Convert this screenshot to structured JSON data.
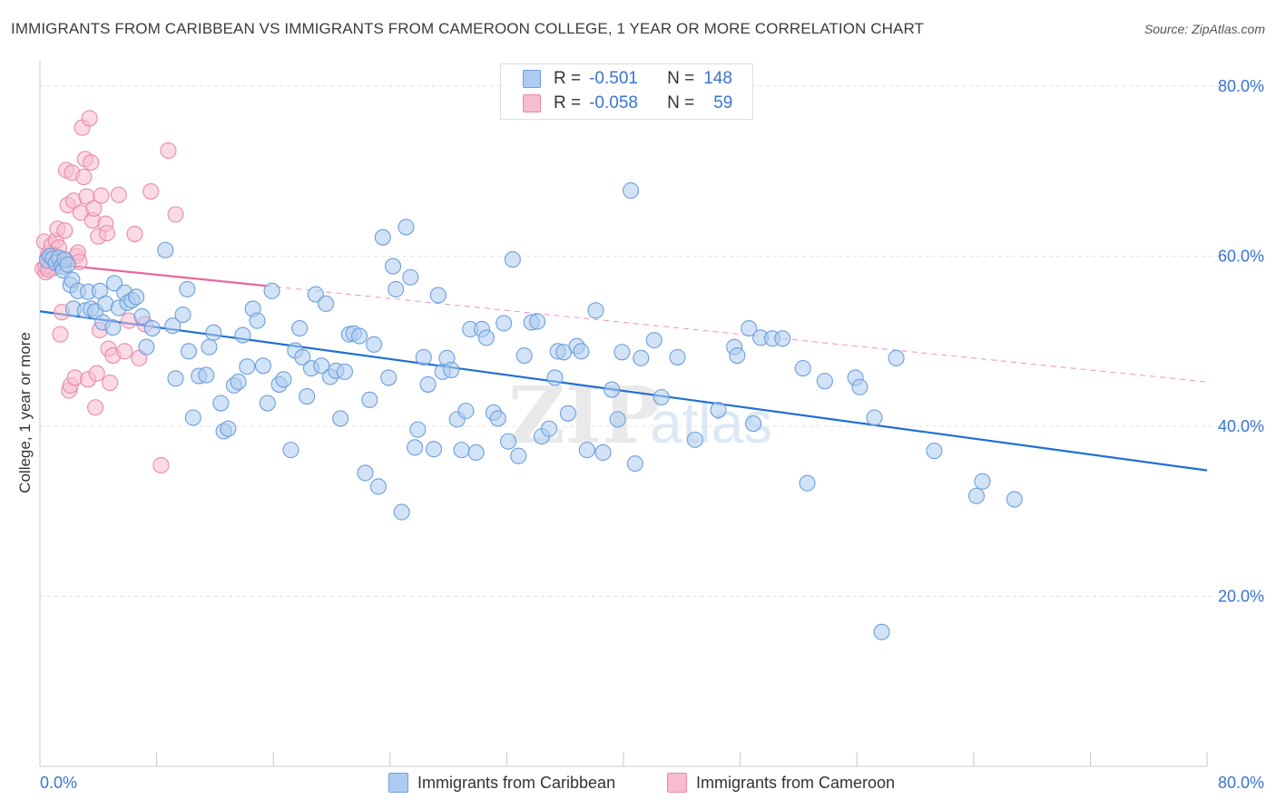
{
  "title": "IMMIGRANTS FROM CARIBBEAN VS IMMIGRANTS FROM CAMEROON COLLEGE, 1 YEAR OR MORE CORRELATION CHART",
  "source": "Source: ZipAtlas.com",
  "legend": {
    "rows": [
      {
        "r_label": "R =",
        "r_value": "-0.501",
        "n_label": "N =",
        "n_value": "148"
      },
      {
        "r_label": "R =",
        "r_value": "-0.058",
        "n_label": "N =",
        "n_value": "59"
      }
    ]
  },
  "bottom_legend": {
    "caribbean": "Immigrants from Caribbean",
    "cameroon": "Immigrants from Cameroon"
  },
  "watermark": {
    "zip": "ZIP",
    "atlas": "atlas"
  },
  "colors": {
    "caribbean_fill": "#aeccf1",
    "caribbean_stroke": "#6c9fdc",
    "caribbean_line": "#1f6fd1",
    "cameroon_fill": "#f7bcd0",
    "cameroon_stroke": "#ea8aaa",
    "cameroon_line": "#e8679a",
    "axis_text": "#3a74d0",
    "grid": "#e3e3e3"
  },
  "chart_data": {
    "type": "scatter",
    "title": "IMMIGRANTS FROM CARIBBEAN VS IMMIGRANTS FROM CAMEROON COLLEGE, 1 YEAR OR MORE CORRELATION CHART",
    "xlabel": "",
    "ylabel": "College, 1 year or more",
    "xlim": [
      0,
      80
    ],
    "ylim": [
      0,
      82
    ],
    "x_tick_labels": [
      "0.0%",
      "80.0%"
    ],
    "y_ticks": [
      20,
      40,
      60,
      80
    ],
    "y_tick_labels": [
      "20.0%",
      "40.0%",
      "60.0%",
      "80.0%"
    ],
    "series": [
      {
        "name": "Immigrants from Caribbean",
        "R": -0.501,
        "N": 148,
        "trend": {
          "x0": 0,
          "y0": 53.5,
          "x1": 80,
          "y1": 34.8
        },
        "points": [
          [
            0.5,
            59.5
          ],
          [
            0.7,
            60.0
          ],
          [
            0.9,
            59.7
          ],
          [
            1.1,
            59.2
          ],
          [
            1.3,
            59.8
          ],
          [
            1.5,
            58.8
          ],
          [
            1.6,
            58.3
          ],
          [
            1.7,
            59.6
          ],
          [
            1.9,
            59.0
          ],
          [
            2.1,
            56.6
          ],
          [
            2.2,
            57.2
          ],
          [
            2.3,
            53.8
          ],
          [
            2.6,
            55.9
          ],
          [
            3.1,
            53.6
          ],
          [
            3.3,
            55.8
          ],
          [
            3.5,
            53.8
          ],
          [
            3.8,
            53.5
          ],
          [
            4.1,
            55.9
          ],
          [
            4.3,
            52.2
          ],
          [
            4.5,
            54.4
          ],
          [
            5.0,
            51.6
          ],
          [
            5.1,
            56.8
          ],
          [
            5.4,
            53.9
          ],
          [
            5.8,
            55.7
          ],
          [
            6.0,
            54.5
          ],
          [
            6.3,
            54.8
          ],
          [
            6.6,
            55.2
          ],
          [
            7.0,
            52.9
          ],
          [
            7.3,
            49.3
          ],
          [
            7.7,
            51.5
          ],
          [
            8.6,
            60.7
          ],
          [
            9.1,
            51.8
          ],
          [
            9.3,
            45.6
          ],
          [
            9.8,
            53.1
          ],
          [
            10.1,
            56.1
          ],
          [
            10.2,
            48.8
          ],
          [
            10.5,
            41.0
          ],
          [
            10.9,
            45.9
          ],
          [
            11.4,
            46.0
          ],
          [
            11.6,
            49.3
          ],
          [
            11.9,
            51.0
          ],
          [
            12.4,
            42.7
          ],
          [
            12.6,
            39.4
          ],
          [
            12.9,
            39.7
          ],
          [
            13.3,
            44.8
          ],
          [
            13.6,
            45.2
          ],
          [
            13.9,
            50.7
          ],
          [
            14.2,
            47.0
          ],
          [
            14.6,
            53.8
          ],
          [
            14.9,
            52.4
          ],
          [
            15.3,
            47.1
          ],
          [
            15.6,
            42.7
          ],
          [
            15.9,
            55.9
          ],
          [
            16.4,
            44.9
          ],
          [
            16.7,
            45.5
          ],
          [
            17.2,
            37.2
          ],
          [
            17.5,
            48.9
          ],
          [
            17.8,
            51.5
          ],
          [
            18.0,
            48.1
          ],
          [
            18.3,
            43.5
          ],
          [
            18.6,
            46.8
          ],
          [
            18.9,
            55.5
          ],
          [
            19.3,
            47.1
          ],
          [
            19.6,
            54.4
          ],
          [
            19.9,
            45.8
          ],
          [
            20.3,
            46.5
          ],
          [
            20.6,
            40.9
          ],
          [
            20.9,
            46.4
          ],
          [
            21.2,
            50.8
          ],
          [
            21.5,
            50.9
          ],
          [
            21.9,
            50.6
          ],
          [
            22.3,
            34.5
          ],
          [
            22.6,
            43.1
          ],
          [
            22.9,
            49.6
          ],
          [
            23.2,
            32.9
          ],
          [
            23.5,
            62.2
          ],
          [
            23.9,
            45.7
          ],
          [
            24.2,
            58.8
          ],
          [
            24.4,
            56.1
          ],
          [
            24.8,
            29.9
          ],
          [
            25.1,
            63.4
          ],
          [
            25.4,
            57.5
          ],
          [
            25.7,
            37.5
          ],
          [
            25.9,
            39.6
          ],
          [
            26.3,
            48.1
          ],
          [
            26.6,
            44.9
          ],
          [
            27.0,
            37.3
          ],
          [
            27.3,
            55.4
          ],
          [
            27.6,
            46.4
          ],
          [
            27.9,
            48.0
          ],
          [
            28.2,
            46.6
          ],
          [
            28.6,
            40.8
          ],
          [
            28.9,
            37.2
          ],
          [
            29.2,
            41.8
          ],
          [
            29.5,
            51.4
          ],
          [
            29.9,
            36.9
          ],
          [
            30.3,
            51.4
          ],
          [
            30.6,
            50.4
          ],
          [
            31.1,
            41.6
          ],
          [
            31.4,
            40.9
          ],
          [
            31.8,
            52.1
          ],
          [
            32.1,
            38.2
          ],
          [
            32.4,
            59.6
          ],
          [
            32.8,
            36.5
          ],
          [
            33.2,
            48.3
          ],
          [
            33.7,
            52.2
          ],
          [
            34.1,
            52.3
          ],
          [
            34.4,
            38.8
          ],
          [
            34.9,
            39.7
          ],
          [
            35.3,
            45.7
          ],
          [
            35.5,
            48.8
          ],
          [
            35.9,
            48.7
          ],
          [
            36.2,
            41.5
          ],
          [
            36.8,
            49.4
          ],
          [
            37.1,
            48.8
          ],
          [
            37.5,
            37.2
          ],
          [
            38.1,
            53.6
          ],
          [
            38.6,
            36.9
          ],
          [
            39.2,
            44.3
          ],
          [
            39.6,
            40.8
          ],
          [
            39.9,
            48.7
          ],
          [
            40.5,
            67.7
          ],
          [
            40.8,
            35.6
          ],
          [
            41.2,
            48.0
          ],
          [
            42.1,
            50.1
          ],
          [
            42.6,
            43.4
          ],
          [
            43.7,
            48.1
          ],
          [
            44.9,
            38.4
          ],
          [
            46.5,
            41.9
          ],
          [
            47.6,
            49.3
          ],
          [
            47.8,
            48.3
          ],
          [
            48.6,
            51.5
          ],
          [
            48.9,
            40.3
          ],
          [
            49.4,
            50.4
          ],
          [
            50.2,
            50.3
          ],
          [
            50.9,
            50.3
          ],
          [
            52.3,
            46.8
          ],
          [
            52.6,
            33.3
          ],
          [
            53.8,
            45.3
          ],
          [
            55.9,
            45.7
          ],
          [
            56.2,
            44.6
          ],
          [
            57.2,
            41.0
          ],
          [
            57.7,
            15.8
          ],
          [
            58.7,
            48.0
          ],
          [
            61.3,
            37.1
          ],
          [
            64.2,
            31.8
          ],
          [
            64.6,
            33.5
          ],
          [
            66.8,
            31.4
          ]
        ]
      },
      {
        "name": "Immigrants from Cameroon",
        "R": -0.058,
        "N": 59,
        "trend": {
          "x0": 0,
          "y0": 59.2,
          "x1": 15.5,
          "y1": 56.5
        },
        "trend_dashed": {
          "x0": 15.5,
          "y0": 56.5,
          "x1": 80,
          "y1": 45.2
        },
        "points": [
          [
            0.2,
            58.5
          ],
          [
            0.3,
            61.7
          ],
          [
            0.4,
            58.1
          ],
          [
            0.5,
            59.8
          ],
          [
            0.6,
            60.3
          ],
          [
            0.7,
            58.9
          ],
          [
            0.8,
            61.3
          ],
          [
            0.9,
            58.6
          ],
          [
            1.0,
            59.2
          ],
          [
            1.1,
            61.8
          ],
          [
            1.2,
            63.2
          ],
          [
            1.3,
            61.0
          ],
          [
            1.4,
            50.8
          ],
          [
            1.5,
            53.4
          ],
          [
            1.6,
            59.5
          ],
          [
            1.7,
            63.0
          ],
          [
            1.8,
            70.1
          ],
          [
            1.9,
            66.0
          ],
          [
            2.0,
            44.2
          ],
          [
            2.1,
            44.8
          ],
          [
            2.2,
            69.8
          ],
          [
            2.3,
            66.5
          ],
          [
            2.4,
            45.7
          ],
          [
            2.5,
            60.0
          ],
          [
            2.6,
            60.4
          ],
          [
            2.7,
            59.3
          ],
          [
            2.8,
            65.1
          ],
          [
            2.9,
            75.1
          ],
          [
            3.0,
            69.3
          ],
          [
            3.1,
            71.4
          ],
          [
            3.2,
            67.0
          ],
          [
            3.3,
            45.5
          ],
          [
            3.4,
            76.2
          ],
          [
            3.5,
            71.0
          ],
          [
            3.6,
            64.2
          ],
          [
            3.7,
            65.6
          ],
          [
            3.8,
            42.2
          ],
          [
            3.9,
            46.2
          ],
          [
            4.0,
            62.3
          ],
          [
            4.1,
            51.3
          ],
          [
            4.2,
            67.1
          ],
          [
            4.5,
            63.8
          ],
          [
            4.6,
            62.7
          ],
          [
            4.7,
            49.1
          ],
          [
            4.8,
            45.1
          ],
          [
            5.0,
            48.3
          ],
          [
            5.4,
            67.2
          ],
          [
            5.8,
            48.8
          ],
          [
            6.1,
            52.4
          ],
          [
            6.5,
            62.6
          ],
          [
            6.8,
            48.0
          ],
          [
            7.2,
            52.0
          ],
          [
            7.6,
            67.6
          ],
          [
            8.3,
            35.4
          ],
          [
            8.8,
            72.4
          ],
          [
            9.3,
            64.9
          ],
          [
            0.4,
            58.8
          ],
          [
            0.6,
            58.4
          ],
          [
            0.9,
            60.1
          ]
        ]
      }
    ]
  }
}
